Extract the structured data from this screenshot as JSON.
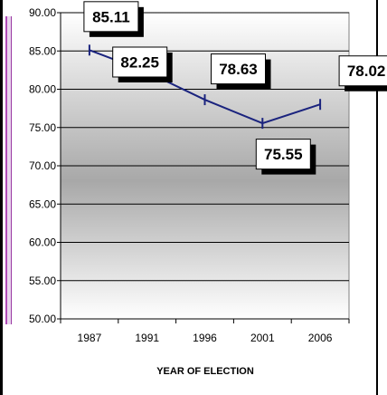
{
  "chart_data": {
    "type": "line",
    "title": "",
    "xlabel": "YEAR OF ELECTION",
    "ylabel": "",
    "categories": [
      "1987",
      "1991",
      "1996",
      "2001",
      "2006"
    ],
    "series": [
      {
        "values": [
          85.11,
          82.25,
          78.63,
          75.55,
          78.02
        ],
        "color": "#1a237e"
      }
    ],
    "ylim": [
      50,
      90
    ],
    "yticks": [
      "50.00",
      "55.00",
      "60.00",
      "65.00",
      "70.00",
      "75.00",
      "80.00",
      "85.00",
      "90.00"
    ],
    "data_labels": [
      "85.11",
      "82.25",
      "78.63",
      "75.55",
      "78.02"
    ],
    "grid": true,
    "legend": "none"
  }
}
